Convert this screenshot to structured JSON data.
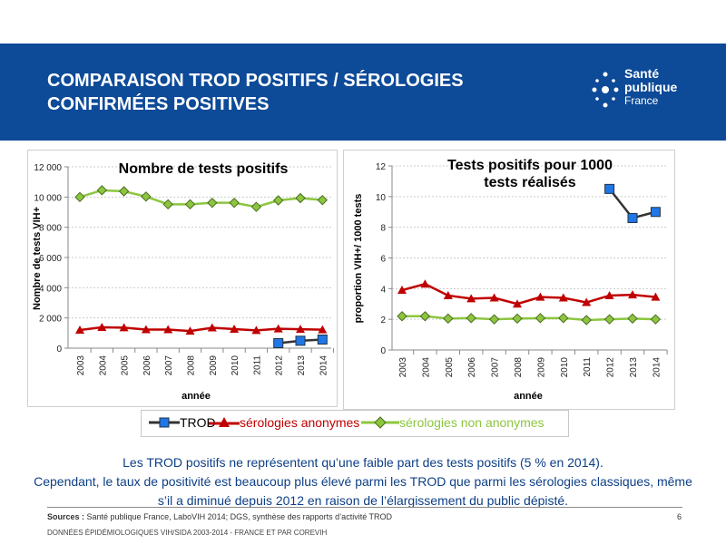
{
  "header": {
    "title_line1": "COMPARAISON TROD POSITIFS / SÉROLOGIES",
    "title_line2": "CONFIRMÉES POSITIVES",
    "logo_line1": "Santé",
    "logo_line2": "publique",
    "logo_line3": "France",
    "band_color": "#0d4a98"
  },
  "legend": [
    {
      "name": "TROD",
      "color": "#1f77e8",
      "marker": "square"
    },
    {
      "name": "sérologies anonymes",
      "color": "#c00000",
      "marker": "triangle"
    },
    {
      "name": "sérologies non anonymes",
      "color": "#8cc63f",
      "marker": "diamond"
    }
  ],
  "chart_data": [
    {
      "type": "line",
      "title": "Nombre de tests positifs",
      "xlabel": "année",
      "ylabel": "Nombre de tests VIH+",
      "ylim": [
        0,
        12000
      ],
      "yticks": [
        "0",
        "2 000",
        "4 000",
        "6 000",
        "8 000",
        "10 000",
        "12 000"
      ],
      "grid": true,
      "categories": [
        "2003",
        "2004",
        "2005",
        "2006",
        "2007",
        "2008",
        "2009",
        "2010",
        "2011",
        "2012",
        "2013",
        "2014"
      ],
      "series": [
        {
          "name": "TROD",
          "values": [
            null,
            null,
            null,
            null,
            null,
            null,
            null,
            null,
            null,
            330,
            490,
            570
          ]
        },
        {
          "name": "sérologies anonymes",
          "values": [
            1200,
            1380,
            1360,
            1230,
            1230,
            1130,
            1350,
            1260,
            1180,
            1280,
            1250,
            1220
          ]
        },
        {
          "name": "sérologies non anonymes",
          "values": [
            10000,
            10450,
            10380,
            10030,
            9520,
            9520,
            9620,
            9620,
            9350,
            9780,
            9930,
            9800
          ]
        }
      ]
    },
    {
      "type": "line",
      "title": "Tests positifs pour 1000 tests réalisés",
      "xlabel": "année",
      "ylabel": "proportion VIH+/ 1000 tests",
      "ylim": [
        0,
        12
      ],
      "yticks": [
        "0",
        "2",
        "4",
        "6",
        "8",
        "10",
        "12"
      ],
      "grid": true,
      "categories": [
        "2003",
        "2004",
        "2005",
        "2006",
        "2007",
        "2008",
        "2009",
        "2010",
        "2011",
        "2012",
        "2013",
        "2014"
      ],
      "series": [
        {
          "name": "TROD",
          "values": [
            null,
            null,
            null,
            null,
            null,
            null,
            null,
            null,
            null,
            10.5,
            8.6,
            9.0
          ]
        },
        {
          "name": "sérologies anonymes",
          "values": [
            3.9,
            4.3,
            3.55,
            3.35,
            3.4,
            3.0,
            3.45,
            3.4,
            3.1,
            3.55,
            3.6,
            3.45
          ]
        },
        {
          "name": "sérologies non anonymes",
          "values": [
            2.2,
            2.2,
            2.05,
            2.08,
            2.0,
            2.05,
            2.08,
            2.08,
            1.95,
            2.0,
            2.05,
            2.0
          ]
        }
      ]
    }
  ],
  "summary": {
    "line1": "Les TROD positifs ne représentent qu’une faible part des tests positifs (5 % en 2014).",
    "line2": "Cependant, le taux de positivité est beaucoup plus élevé parmi les TROD que parmi les sérologies classiques, même s’il a diminué depuis 2012 en raison de l’élargissement du public dépisté."
  },
  "footer": {
    "sources_label": "Sources :",
    "sources": " Santé publique France, LaboVIH 2014; DGS, synthèse des rapports d’activité TROD",
    "page": "6",
    "deck": "DONNÉES ÉPIDÉMIOLOGIQUES VIH/SIDA 2003-2014 - FRANCE ET PAR COREVIH"
  }
}
